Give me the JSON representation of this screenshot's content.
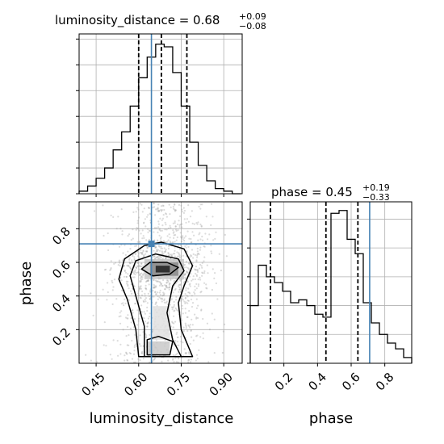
{
  "chart_data": {
    "type": "corner",
    "truth": {
      "luminosity_distance": 0.645,
      "phase": 0.71
    },
    "truth_color": "#4682b4",
    "panels": [
      {
        "id": "hist-luminosity-distance",
        "type": "histogram",
        "parameter": "luminosity_distance",
        "title": {
          "prefix": "luminosity_distance = 0.68",
          "sup": "+0.09",
          "sub": "−0.08"
        },
        "quantiles": [
          0.6,
          0.68,
          0.77
        ],
        "bin_edges": [
          0.39,
          0.42,
          0.45,
          0.48,
          0.51,
          0.54,
          0.57,
          0.6,
          0.63,
          0.66,
          0.69,
          0.72,
          0.75,
          0.78,
          0.81,
          0.84,
          0.87,
          0.9,
          0.93,
          0.96
        ],
        "counts": [
          1,
          3,
          6,
          10,
          17,
          24,
          34,
          45,
          53,
          58,
          57,
          47,
          34,
          20,
          11,
          5,
          2,
          1,
          0
        ],
        "ylim": [
          0,
          62
        ],
        "xlim": [
          0.39,
          0.965
        ],
        "y_ticks": [
          0,
          10,
          20,
          30,
          40,
          50,
          60
        ]
      },
      {
        "id": "hist-phase",
        "type": "histogram",
        "parameter": "phase",
        "title": {
          "prefix": "phase = 0.45",
          "sup": "+0.19",
          "sub": "−0.33"
        },
        "quantiles": [
          0.12,
          0.45,
          0.64
        ],
        "bin_edges": [
          0.0,
          0.048,
          0.096,
          0.144,
          0.192,
          0.24,
          0.288,
          0.336,
          0.384,
          0.432,
          0.48,
          0.528,
          0.576,
          0.624,
          0.672,
          0.72,
          0.768,
          0.816,
          0.864,
          0.912,
          0.96
        ],
        "counts": [
          20,
          34,
          30,
          28,
          25,
          21,
          22,
          20,
          17,
          16,
          52,
          53,
          43,
          38,
          21,
          14,
          10,
          7,
          5,
          2
        ],
        "ylim": [
          0,
          56
        ],
        "xlim": [
          0.0,
          0.96
        ],
        "y_ticks": [
          0,
          10,
          20,
          30,
          40,
          50
        ],
        "x_ticks": [
          0.2,
          0.4,
          0.6,
          0.8
        ],
        "x_tick_labels": [
          "0.2",
          "0.4",
          "0.6",
          "0.8"
        ],
        "xlabel": "phase"
      },
      {
        "id": "joint-luminosity-distance-phase",
        "type": "contour2d",
        "x_parameter": "luminosity_distance",
        "y_parameter": "phase",
        "xlim": [
          0.39,
          0.965
        ],
        "ylim": [
          0.0,
          0.96
        ],
        "x_ticks": [
          0.45,
          0.6,
          0.75,
          0.9
        ],
        "x_tick_labels": [
          "0.45",
          "0.60",
          "0.75",
          "0.90"
        ],
        "y_ticks": [
          0.2,
          0.4,
          0.6,
          0.8
        ],
        "y_tick_labels": [
          "0.2",
          "0.4",
          "0.6",
          "0.8"
        ],
        "xlabel": "luminosity_distance",
        "ylabel": "phase",
        "grid": true
      }
    ]
  }
}
